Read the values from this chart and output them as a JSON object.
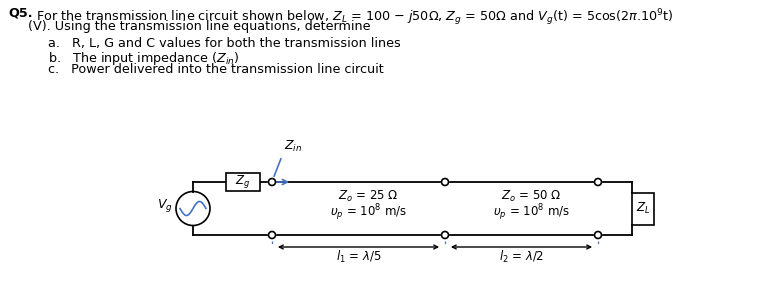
{
  "bg_color": "#ffffff",
  "text_line1_bold": "Q5.",
  "text_line1_rest": "For the transmission line circuit shown below, Z_L = 100 – j50Ω, Z_g = 50Ω and V_g(t) = 5cos(2π.10⁹t)",
  "text_line2": "(V). Using the transmission line equations, determine",
  "item_a": "a.   R, L, G and C values for both the transmission lines",
  "item_b": "b.   The input impedance (Z_in)",
  "item_c": "c.   Power delivered into the transmission line circuit",
  "zin_label": "Z_in",
  "zg_label": "Z_g",
  "zl_label": "Z_L",
  "vg_label": "V_g",
  "line1_z0": "Z_o = 25 Ω",
  "line1_vp": "υ_p = 10^8 m/s",
  "line1_len": "l_1 = λ/5",
  "line2_z0": "Z_o = 50 Ω",
  "line2_vp": "υ_p = 10^8 m/s",
  "line2_len": "l_2 = λ/2",
  "arrow_color": "#4472c4"
}
